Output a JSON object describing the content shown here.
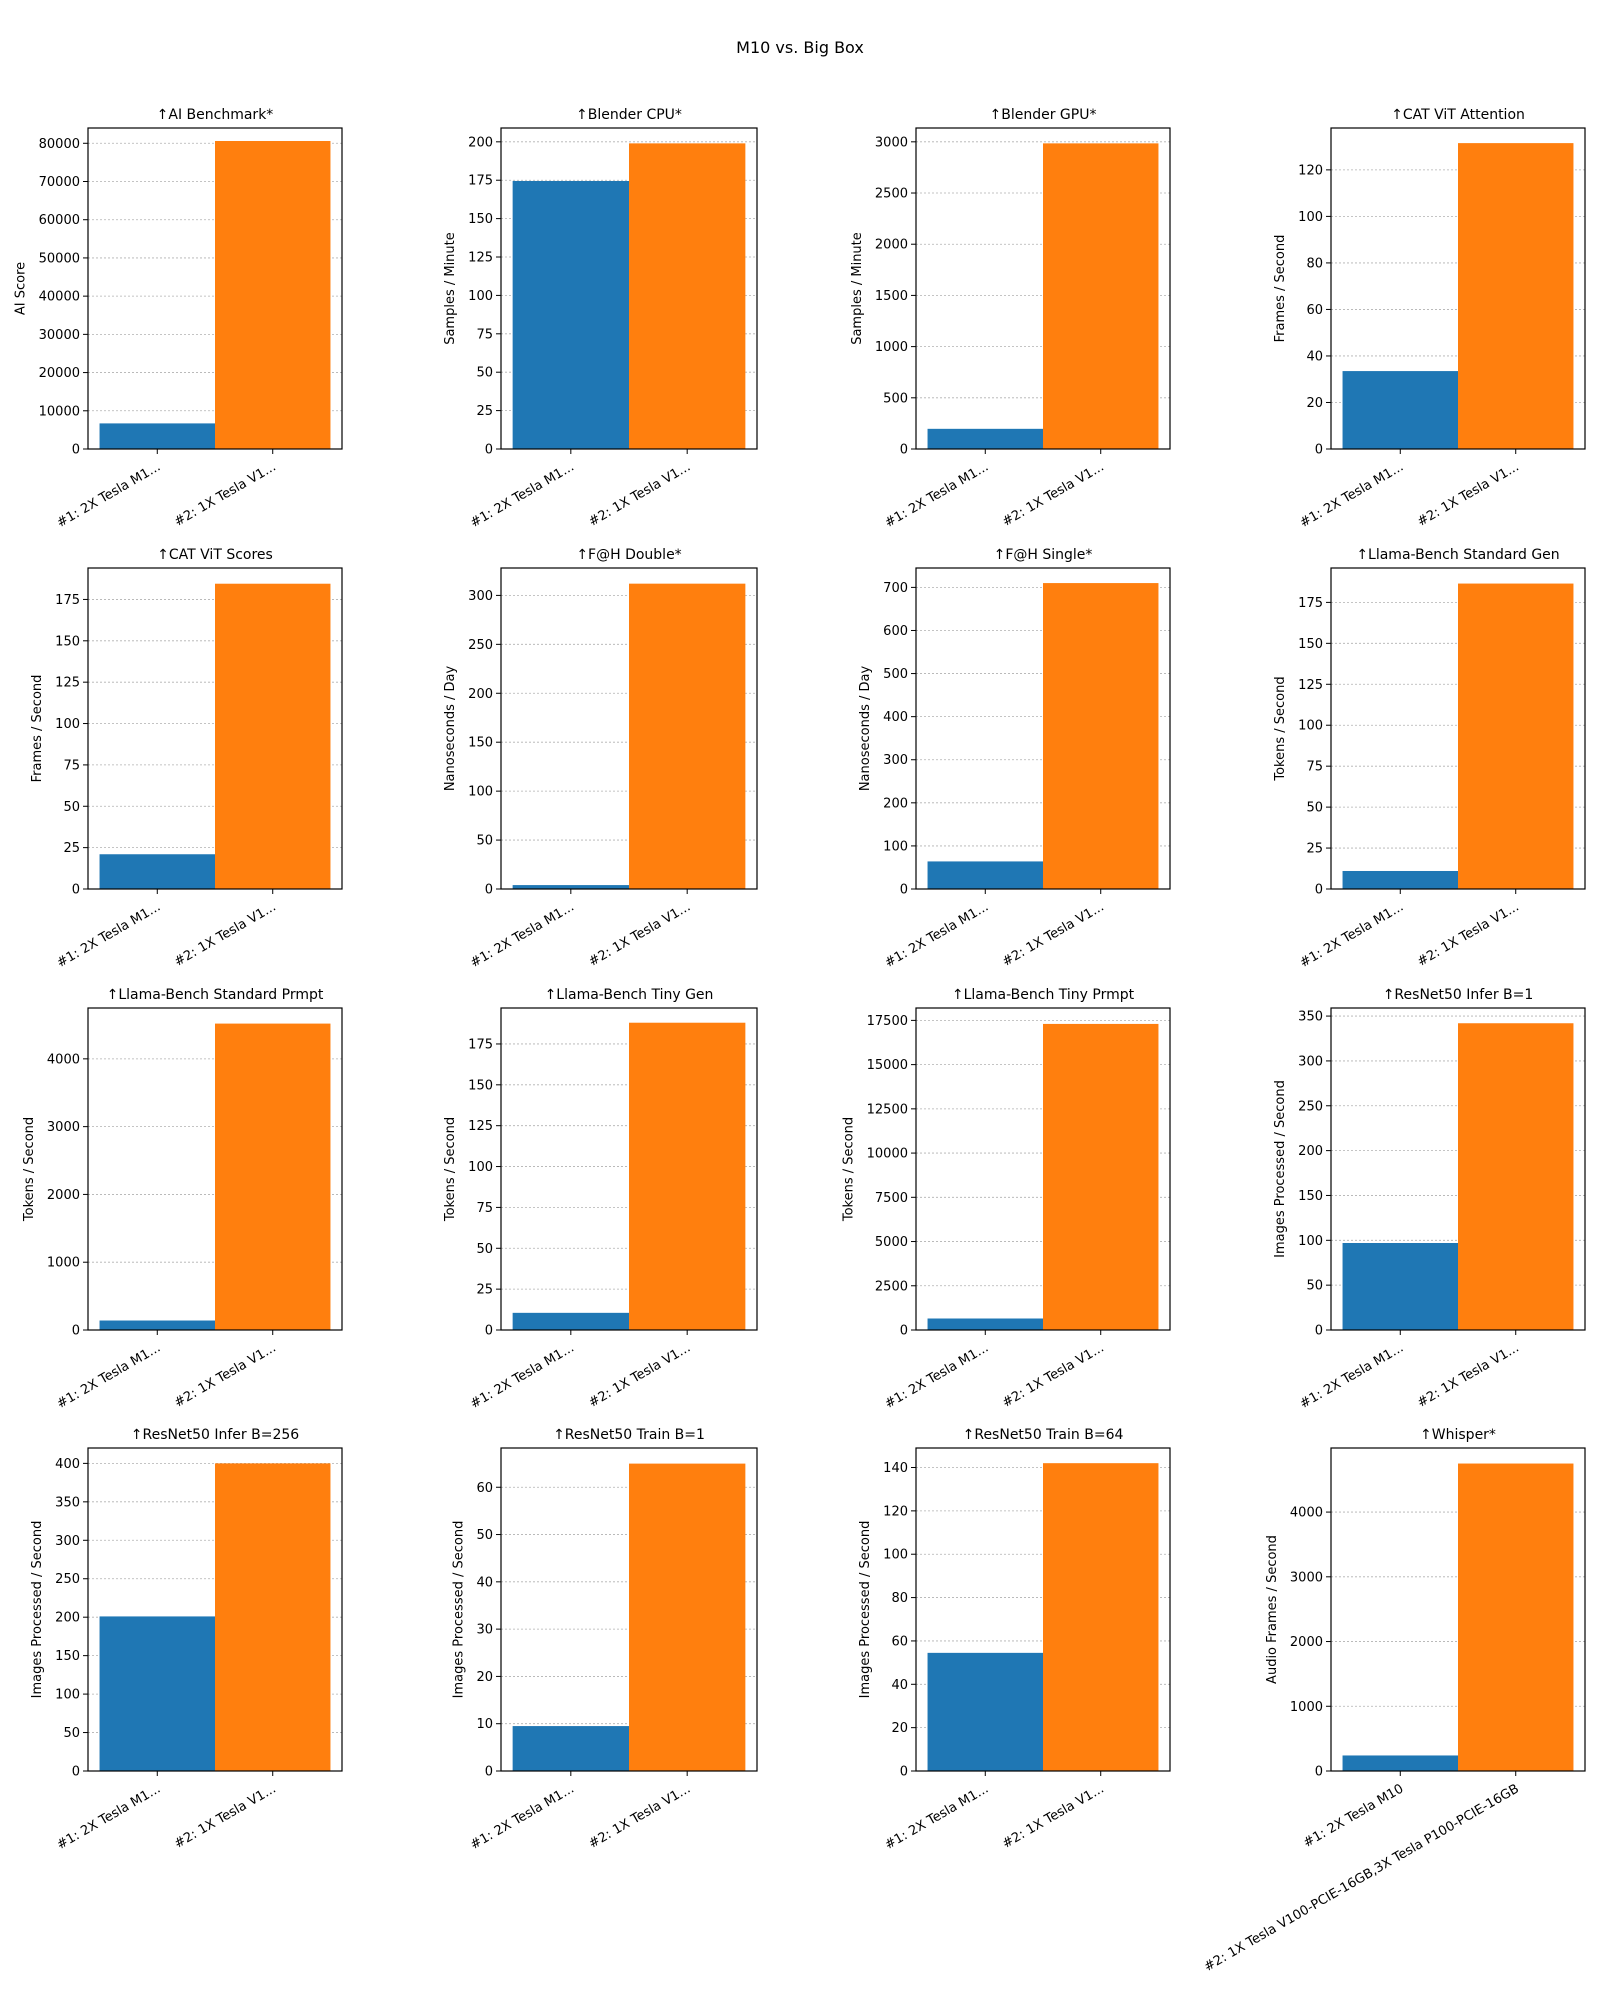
{
  "chart_data": {
    "type": "bar",
    "title": "M10 vs. Big Box",
    "categories_short": [
      "#1: 2X Tesla M1...",
      "#2: 1X Tesla V1..."
    ],
    "categories_full": [
      "#1: 2X Tesla M10",
      "#2: 1X Tesla V100-PCIE-16GB,3X Tesla P100-PCIE-16GB"
    ],
    "colors": [
      "#1f77b4",
      "#ff7f0e"
    ],
    "grid": "y-dotted",
    "subplots": [
      {
        "title": "↑AI Benchmark*",
        "ylabel": "AI Score",
        "values": [
          6700,
          80600
        ],
        "ylim": [
          0,
          84000
        ],
        "tick_step": 10000
      },
      {
        "title": "↑Blender CPU*",
        "ylabel": "Samples / Minute",
        "values": [
          174.5,
          199
        ],
        "ylim": [
          0,
          209
        ],
        "tick_step": 25
      },
      {
        "title": "↑Blender GPU*",
        "ylabel": "Samples / Minute",
        "values": [
          197,
          2985
        ],
        "ylim": [
          0,
          3135
        ],
        "tick_step": 500
      },
      {
        "title": "↑CAT ViT Attention",
        "ylabel": "Frames / Second",
        "values": [
          33.5,
          131.5
        ],
        "ylim": [
          0,
          138
        ],
        "tick_step": 20
      },
      {
        "title": "↑CAT ViT Scores",
        "ylabel": "Frames / Second",
        "values": [
          21,
          184.5
        ],
        "ylim": [
          0,
          194
        ],
        "tick_step": 25
      },
      {
        "title": "↑F@H Double*",
        "ylabel": "Nanoseconds / Day",
        "values": [
          4,
          312
        ],
        "ylim": [
          0,
          328
        ],
        "tick_step": 50
      },
      {
        "title": "↑F@H Single*",
        "ylabel": "Nanoseconds / Day",
        "values": [
          64,
          710
        ],
        "ylim": [
          0,
          745
        ],
        "tick_step": 100
      },
      {
        "title": "↑Llama-Bench Standard Gen",
        "ylabel": "Tokens / Second",
        "values": [
          11,
          186.5
        ],
        "ylim": [
          0,
          196
        ],
        "tick_step": 25
      },
      {
        "title": "↑Llama-Bench Standard Prmpt",
        "ylabel": "Tokens / Second",
        "values": [
          140,
          4520
        ],
        "ylim": [
          0,
          4750
        ],
        "tick_step": 1000
      },
      {
        "title": "↑Llama-Bench Tiny Gen",
        "ylabel": "Tokens / Second",
        "values": [
          10.5,
          188
        ],
        "ylim": [
          0,
          197
        ],
        "tick_step": 25
      },
      {
        "title": "↑Llama-Bench Tiny Prmpt",
        "ylabel": "Tokens / Second",
        "values": [
          650,
          17300
        ],
        "ylim": [
          0,
          18200
        ],
        "tick_step": 2500
      },
      {
        "title": "↑ResNet50 Infer B=1",
        "ylabel": "Images Processed / Second",
        "values": [
          97,
          342
        ],
        "ylim": [
          0,
          359
        ],
        "tick_step": 50
      },
      {
        "title": "↑ResNet50 Infer B=256",
        "ylabel": "Images Processed / Second",
        "values": [
          201,
          400
        ],
        "ylim": [
          0,
          420
        ],
        "tick_step": 50
      },
      {
        "title": "↑ResNet50 Train B=1",
        "ylabel": "Images Processed / Second",
        "values": [
          9.5,
          65
        ],
        "ylim": [
          0,
          68.3
        ],
        "tick_step": 10
      },
      {
        "title": "↑ResNet50 Train B=64",
        "ylabel": "Images Processed / Second",
        "values": [
          54.5,
          142
        ],
        "ylim": [
          0,
          149
        ],
        "tick_step": 20
      },
      {
        "title": "↑Whisper*",
        "ylabel": "Audio Frames / Second",
        "values": [
          240,
          4750
        ],
        "ylim": [
          0,
          4990
        ],
        "tick_step": 1000,
        "full_labels": true
      }
    ]
  }
}
